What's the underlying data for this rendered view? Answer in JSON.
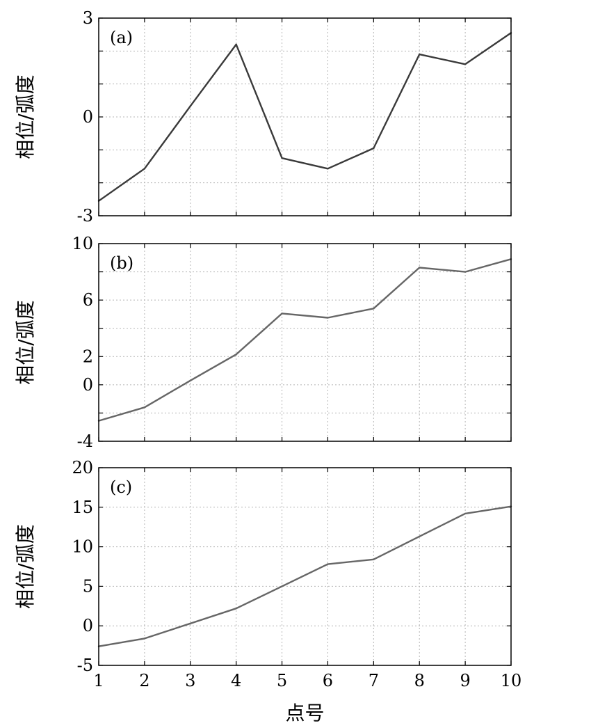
{
  "chart_data": [
    {
      "type": "line",
      "panel_label": "(a)",
      "ylabel": "相位/弧度",
      "xlabel": "",
      "x": [
        1,
        2,
        3,
        4,
        5,
        6,
        7,
        8,
        9,
        10
      ],
      "series": [
        {
          "values": [
            -2.55,
            -1.57,
            0.33,
            2.2,
            -1.25,
            -1.57,
            -0.95,
            1.9,
            1.6,
            2.55
          ]
        }
      ],
      "xlim": [
        1,
        10
      ],
      "ylim": [
        -3,
        3
      ],
      "yticks": [
        -3,
        0,
        3
      ],
      "yminor": [
        -2,
        -1,
        1,
        2
      ],
      "xticks": [
        1,
        2,
        3,
        4,
        5,
        6,
        7,
        8,
        9,
        10
      ],
      "xtick_labels_visible": false,
      "grid": true,
      "line_color": "#3a3a3a"
    },
    {
      "type": "line",
      "panel_label": "(b)",
      "ylabel": "相位/弧度",
      "xlabel": "",
      "x": [
        1,
        2,
        3,
        4,
        5,
        6,
        7,
        8,
        9,
        10
      ],
      "series": [
        {
          "values": [
            -2.55,
            -1.6,
            0.3,
            2.15,
            5.05,
            4.75,
            5.4,
            8.3,
            8.0,
            8.9
          ]
        }
      ],
      "xlim": [
        1,
        10
      ],
      "ylim": [
        -4,
        10
      ],
      "yticks": [
        -4,
        0,
        2,
        6,
        10
      ],
      "yminor": [
        -2,
        4,
        8
      ],
      "xticks": [
        1,
        2,
        3,
        4,
        5,
        6,
        7,
        8,
        9,
        10
      ],
      "xtick_labels_visible": false,
      "grid": true,
      "line_color": "#666666"
    },
    {
      "type": "line",
      "panel_label": "(c)",
      "ylabel": "相位/弧度",
      "xlabel": "点号",
      "x": [
        1,
        2,
        3,
        4,
        5,
        6,
        7,
        8,
        9,
        10
      ],
      "series": [
        {
          "values": [
            -2.6,
            -1.6,
            0.3,
            2.2,
            5.0,
            7.8,
            8.4,
            11.3,
            14.2,
            15.1
          ]
        }
      ],
      "xlim": [
        1,
        10
      ],
      "ylim": [
        -5,
        20
      ],
      "yticks": [
        -5,
        0,
        5,
        10,
        15,
        20
      ],
      "yminor": [],
      "xticks": [
        1,
        2,
        3,
        4,
        5,
        6,
        7,
        8,
        9,
        10
      ],
      "xtick_labels_visible": true,
      "grid": true,
      "line_color": "#666666"
    }
  ]
}
